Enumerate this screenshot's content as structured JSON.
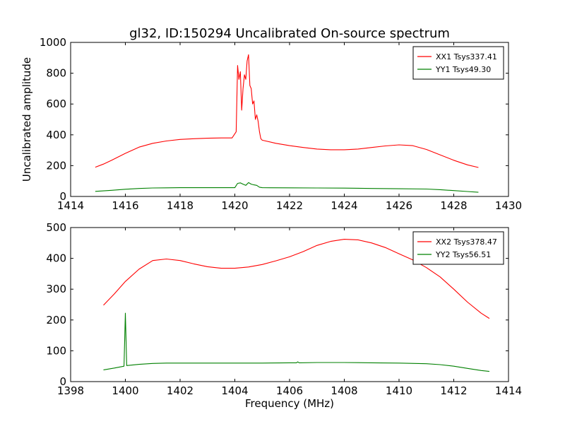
{
  "figure": {
    "title": "gl32, ID:150294 Uncalibrated On-source spectrum"
  },
  "chart_data": [
    {
      "type": "line",
      "title": "gl32, ID:150294 Uncalibrated On-source spectrum",
      "xlabel": "",
      "ylabel": "Uncalibrated amplitude",
      "xlim": [
        1414,
        1430
      ],
      "ylim": [
        0,
        1000
      ],
      "xticks": [
        1414,
        1416,
        1418,
        1420,
        1422,
        1424,
        1426,
        1428,
        1430
      ],
      "yticks": [
        0,
        200,
        400,
        600,
        800,
        1000
      ],
      "legend_position": "top-right",
      "series": [
        {
          "name": "XX1 Tsys337.41",
          "color": "#ff0000",
          "x": [
            1414.9,
            1415.2,
            1415.5,
            1416.0,
            1416.5,
            1417.0,
            1417.5,
            1418.0,
            1418.5,
            1419.0,
            1419.5,
            1419.9,
            1420.05,
            1420.1,
            1420.15,
            1420.2,
            1420.25,
            1420.3,
            1420.35,
            1420.4,
            1420.45,
            1420.5,
            1420.55,
            1420.6,
            1420.65,
            1420.7,
            1420.75,
            1420.8,
            1420.85,
            1420.9,
            1420.95,
            1421.0,
            1421.5,
            1422.0,
            1422.5,
            1423.0,
            1423.5,
            1424.0,
            1424.5,
            1425.0,
            1425.5,
            1426.0,
            1426.5,
            1427.0,
            1427.5,
            1428.0,
            1428.5,
            1428.9
          ],
          "values": [
            190,
            210,
            235,
            280,
            320,
            345,
            360,
            370,
            375,
            378,
            380,
            380,
            420,
            850,
            760,
            810,
            560,
            700,
            790,
            760,
            880,
            920,
            720,
            700,
            600,
            620,
            500,
            530,
            490,
            420,
            375,
            365,
            345,
            330,
            318,
            308,
            303,
            303,
            308,
            318,
            328,
            335,
            330,
            305,
            270,
            235,
            205,
            188
          ]
        },
        {
          "name": "YY1 Tsys49.30",
          "color": "#008000",
          "x": [
            1414.9,
            1415.5,
            1416.0,
            1416.5,
            1417.0,
            1417.5,
            1418.0,
            1419.0,
            1420.0,
            1420.1,
            1420.2,
            1420.3,
            1420.4,
            1420.5,
            1420.6,
            1420.7,
            1420.8,
            1420.9,
            1421.0,
            1422.0,
            1423.0,
            1424.0,
            1425.0,
            1426.0,
            1427.0,
            1427.5,
            1428.0,
            1428.5,
            1428.9
          ],
          "values": [
            33,
            40,
            47,
            52,
            55,
            56,
            57,
            57,
            57,
            85,
            88,
            80,
            72,
            90,
            80,
            75,
            72,
            60,
            57,
            56,
            55,
            54,
            52,
            50,
            48,
            44,
            38,
            32,
            27
          ]
        }
      ]
    },
    {
      "type": "line",
      "title": "",
      "xlabel": "Frequency (MHz)",
      "ylabel": "",
      "xlim": [
        1398,
        1414
      ],
      "ylim": [
        0,
        500
      ],
      "xticks": [
        1398,
        1400,
        1402,
        1404,
        1406,
        1408,
        1410,
        1412,
        1414
      ],
      "yticks": [
        0,
        100,
        200,
        300,
        400,
        500
      ],
      "legend_position": "top-right",
      "series": [
        {
          "name": "XX2 Tsys378.47",
          "color": "#ff0000",
          "x": [
            1399.2,
            1399.6,
            1400.0,
            1400.5,
            1401.0,
            1401.5,
            1402.0,
            1402.5,
            1403.0,
            1403.5,
            1404.0,
            1404.5,
            1405.0,
            1405.5,
            1406.0,
            1406.5,
            1407.0,
            1407.5,
            1408.0,
            1408.5,
            1409.0,
            1409.5,
            1410.0,
            1410.5,
            1411.0,
            1411.5,
            1412.0,
            1412.5,
            1413.0,
            1413.3
          ],
          "values": [
            248,
            285,
            325,
            365,
            393,
            398,
            393,
            382,
            373,
            368,
            368,
            372,
            380,
            392,
            405,
            422,
            442,
            455,
            462,
            460,
            450,
            435,
            415,
            395,
            370,
            340,
            300,
            258,
            222,
            205
          ]
        },
        {
          "name": "YY2 Tsys56.51",
          "color": "#008000",
          "x": [
            1399.2,
            1399.6,
            1399.95,
            1400.0,
            1400.05,
            1400.5,
            1401.0,
            1401.5,
            1402.0,
            1403.0,
            1404.0,
            1405.0,
            1406.0,
            1406.25,
            1406.3,
            1406.35,
            1407.0,
            1408.0,
            1409.0,
            1410.0,
            1411.0,
            1411.5,
            1412.0,
            1412.5,
            1413.0,
            1413.3
          ],
          "values": [
            38,
            44,
            50,
            222,
            52,
            56,
            59,
            60,
            60,
            60,
            60,
            60,
            61,
            61,
            64,
            61,
            62,
            62,
            61,
            60,
            58,
            55,
            50,
            43,
            36,
            33
          ]
        }
      ]
    }
  ]
}
